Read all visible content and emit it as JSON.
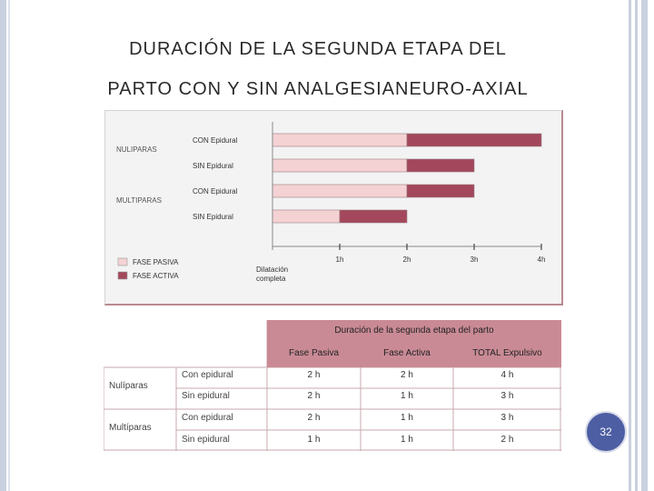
{
  "title": {
    "line1": "DURACIÓN DE LA SEGUNDA ETAPA DEL",
    "line2": "PARTO CON Y SIN ANALGESIANEURO-AXIAL"
  },
  "page_number": "32",
  "colors": {
    "fase_pasiva": "#f4d2d4",
    "fase_activa": "#a3485c",
    "table_header": "#c98a95"
  },
  "chart_data": {
    "type": "bar",
    "orientation": "horizontal",
    "stacked": true,
    "groups": [
      "NULIPARAS",
      "MULTIPARAS"
    ],
    "categories": [
      "CON Epidural",
      "SIN Epidural",
      "CON Epidural",
      "SIN Epidural"
    ],
    "category_groups": [
      "NULIPARAS",
      "NULIPARAS",
      "MULTIPARAS",
      "MULTIPARAS"
    ],
    "series": [
      {
        "name": "FASE PASIVA",
        "values": [
          2,
          2,
          2,
          1
        ]
      },
      {
        "name": "FASE ACTIVA",
        "values": [
          2,
          1,
          1,
          1
        ]
      }
    ],
    "xticks": [
      "1h",
      "2h",
      "3h",
      "4h"
    ],
    "xlim": [
      0,
      4
    ],
    "xlabel": "Dilatación completa",
    "legend_position": "bottom-left",
    "grid": false
  },
  "table": {
    "title": "Duración de la segunda etapa del parto",
    "columns": [
      "Fase Pasiva",
      "Fase Activa",
      "TOTAL Expulsivo"
    ],
    "groups": [
      {
        "label": "Nulíparas",
        "rows": [
          {
            "label": "Con epidural",
            "cells": [
              "2 h",
              "2 h",
              "4 h"
            ]
          },
          {
            "label": "Sin epidural",
            "cells": [
              "2 h",
              "1 h",
              "3 h"
            ]
          }
        ]
      },
      {
        "label": "Multíparas",
        "rows": [
          {
            "label": "Con epidural",
            "cells": [
              "2 h",
              "1 h",
              "3 h"
            ]
          },
          {
            "label": "Sin epidural",
            "cells": [
              "1 h",
              "1 h",
              "2 h"
            ]
          }
        ]
      }
    ]
  }
}
